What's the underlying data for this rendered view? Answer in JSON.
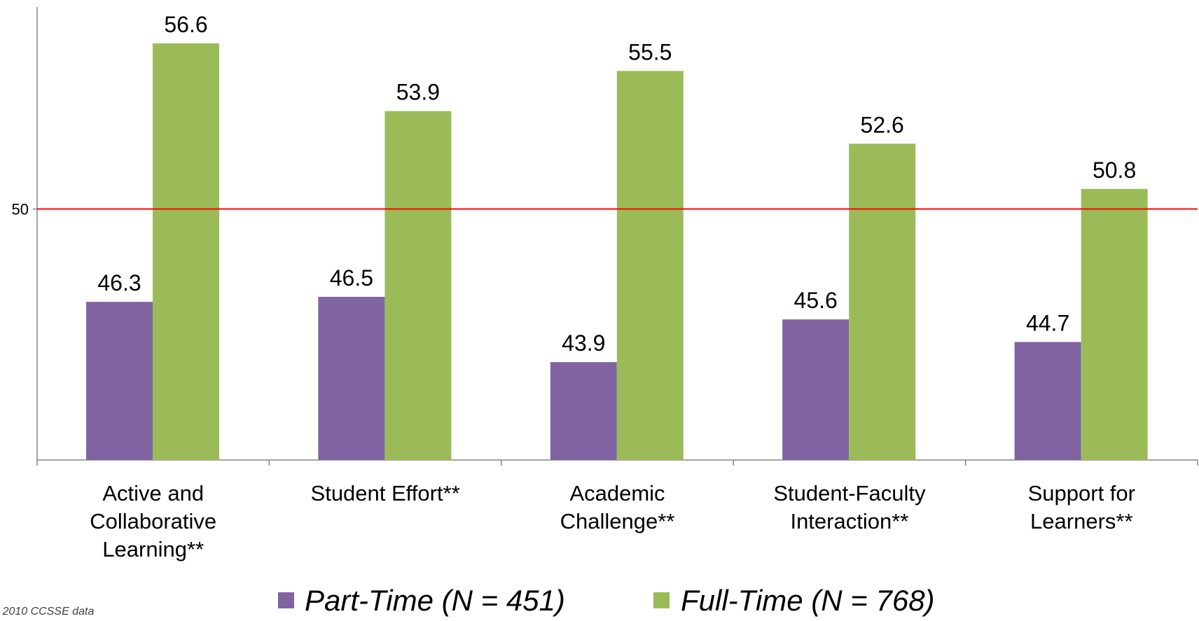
{
  "chart_data": {
    "type": "bar",
    "categories": [
      [
        "Active and",
        "Collaborative",
        "Learning**"
      ],
      [
        "Student Effort**"
      ],
      [
        "Academic",
        "Challenge**"
      ],
      [
        "Student-Faculty",
        "Interaction**"
      ],
      [
        "Support for",
        "Learners**"
      ]
    ],
    "series": [
      {
        "name": "Part-Time (N = 451)",
        "color": "#8064a2",
        "values": [
          46.3,
          46.5,
          43.9,
          45.6,
          44.7
        ],
        "labels": [
          "46.3",
          "46.5",
          "43.9",
          "45.6",
          "44.7"
        ]
      },
      {
        "name": "Full-Time (N = 768)",
        "color": "#9bbb59",
        "values": [
          56.6,
          53.9,
          55.5,
          52.6,
          50.8
        ],
        "labels": [
          "56.6",
          "53.9",
          "55.5",
          "52.6",
          "50.8"
        ]
      }
    ],
    "ylim": [
      40,
      60
    ],
    "yticks": [
      {
        "value": 50,
        "label": "50"
      }
    ],
    "reference_line": {
      "value": 50,
      "color": "#ff0000"
    },
    "legend_position": "bottom",
    "grid": false,
    "title": "",
    "xlabel": "",
    "ylabel": ""
  },
  "source_note": "Source: 2010 CCSSE data"
}
